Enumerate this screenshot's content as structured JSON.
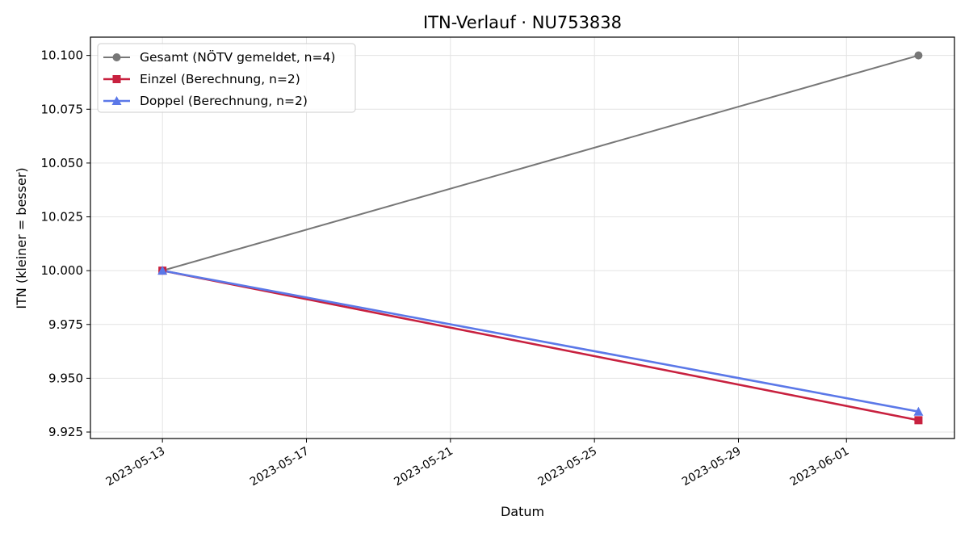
{
  "chart_data": {
    "type": "line",
    "title": "ITN-Verlauf · NU753838",
    "xlabel": "Datum",
    "ylabel": "ITN  (kleiner = besser)",
    "x_ticks": [
      "2023-05-13",
      "2023-05-17",
      "2023-05-21",
      "2023-05-25",
      "2023-05-29",
      "2023-06-01"
    ],
    "y_ticks": [
      "9.925",
      "9.950",
      "9.975",
      "10.000",
      "10.025",
      "10.050",
      "10.075",
      "10.100"
    ],
    "xlim": [
      "2023-05-11",
      "2023-06-04"
    ],
    "ylim": [
      9.922,
      10.1085
    ],
    "grid": true,
    "legend_position": "top-left",
    "series": [
      {
        "name": "Gesamt (NÖTV gemeldet, n=4)",
        "color": "#777777",
        "marker": "circle",
        "points": [
          {
            "x": "2023-05-13",
            "y": 10.0
          },
          {
            "x": "2023-06-03",
            "y": 10.1
          }
        ]
      },
      {
        "name": "Einzel (Berechnung, n=2)",
        "color": "#c8213f",
        "marker": "square",
        "points": [
          {
            "x": "2023-05-13",
            "y": 10.0
          },
          {
            "x": "2023-06-03",
            "y": 9.9305
          }
        ]
      },
      {
        "name": "Doppel (Berechnung, n=2)",
        "color": "#5b78e8",
        "marker": "triangle",
        "points": [
          {
            "x": "2023-05-13",
            "y": 10.0
          },
          {
            "x": "2023-06-03",
            "y": 9.9345
          }
        ]
      }
    ]
  }
}
